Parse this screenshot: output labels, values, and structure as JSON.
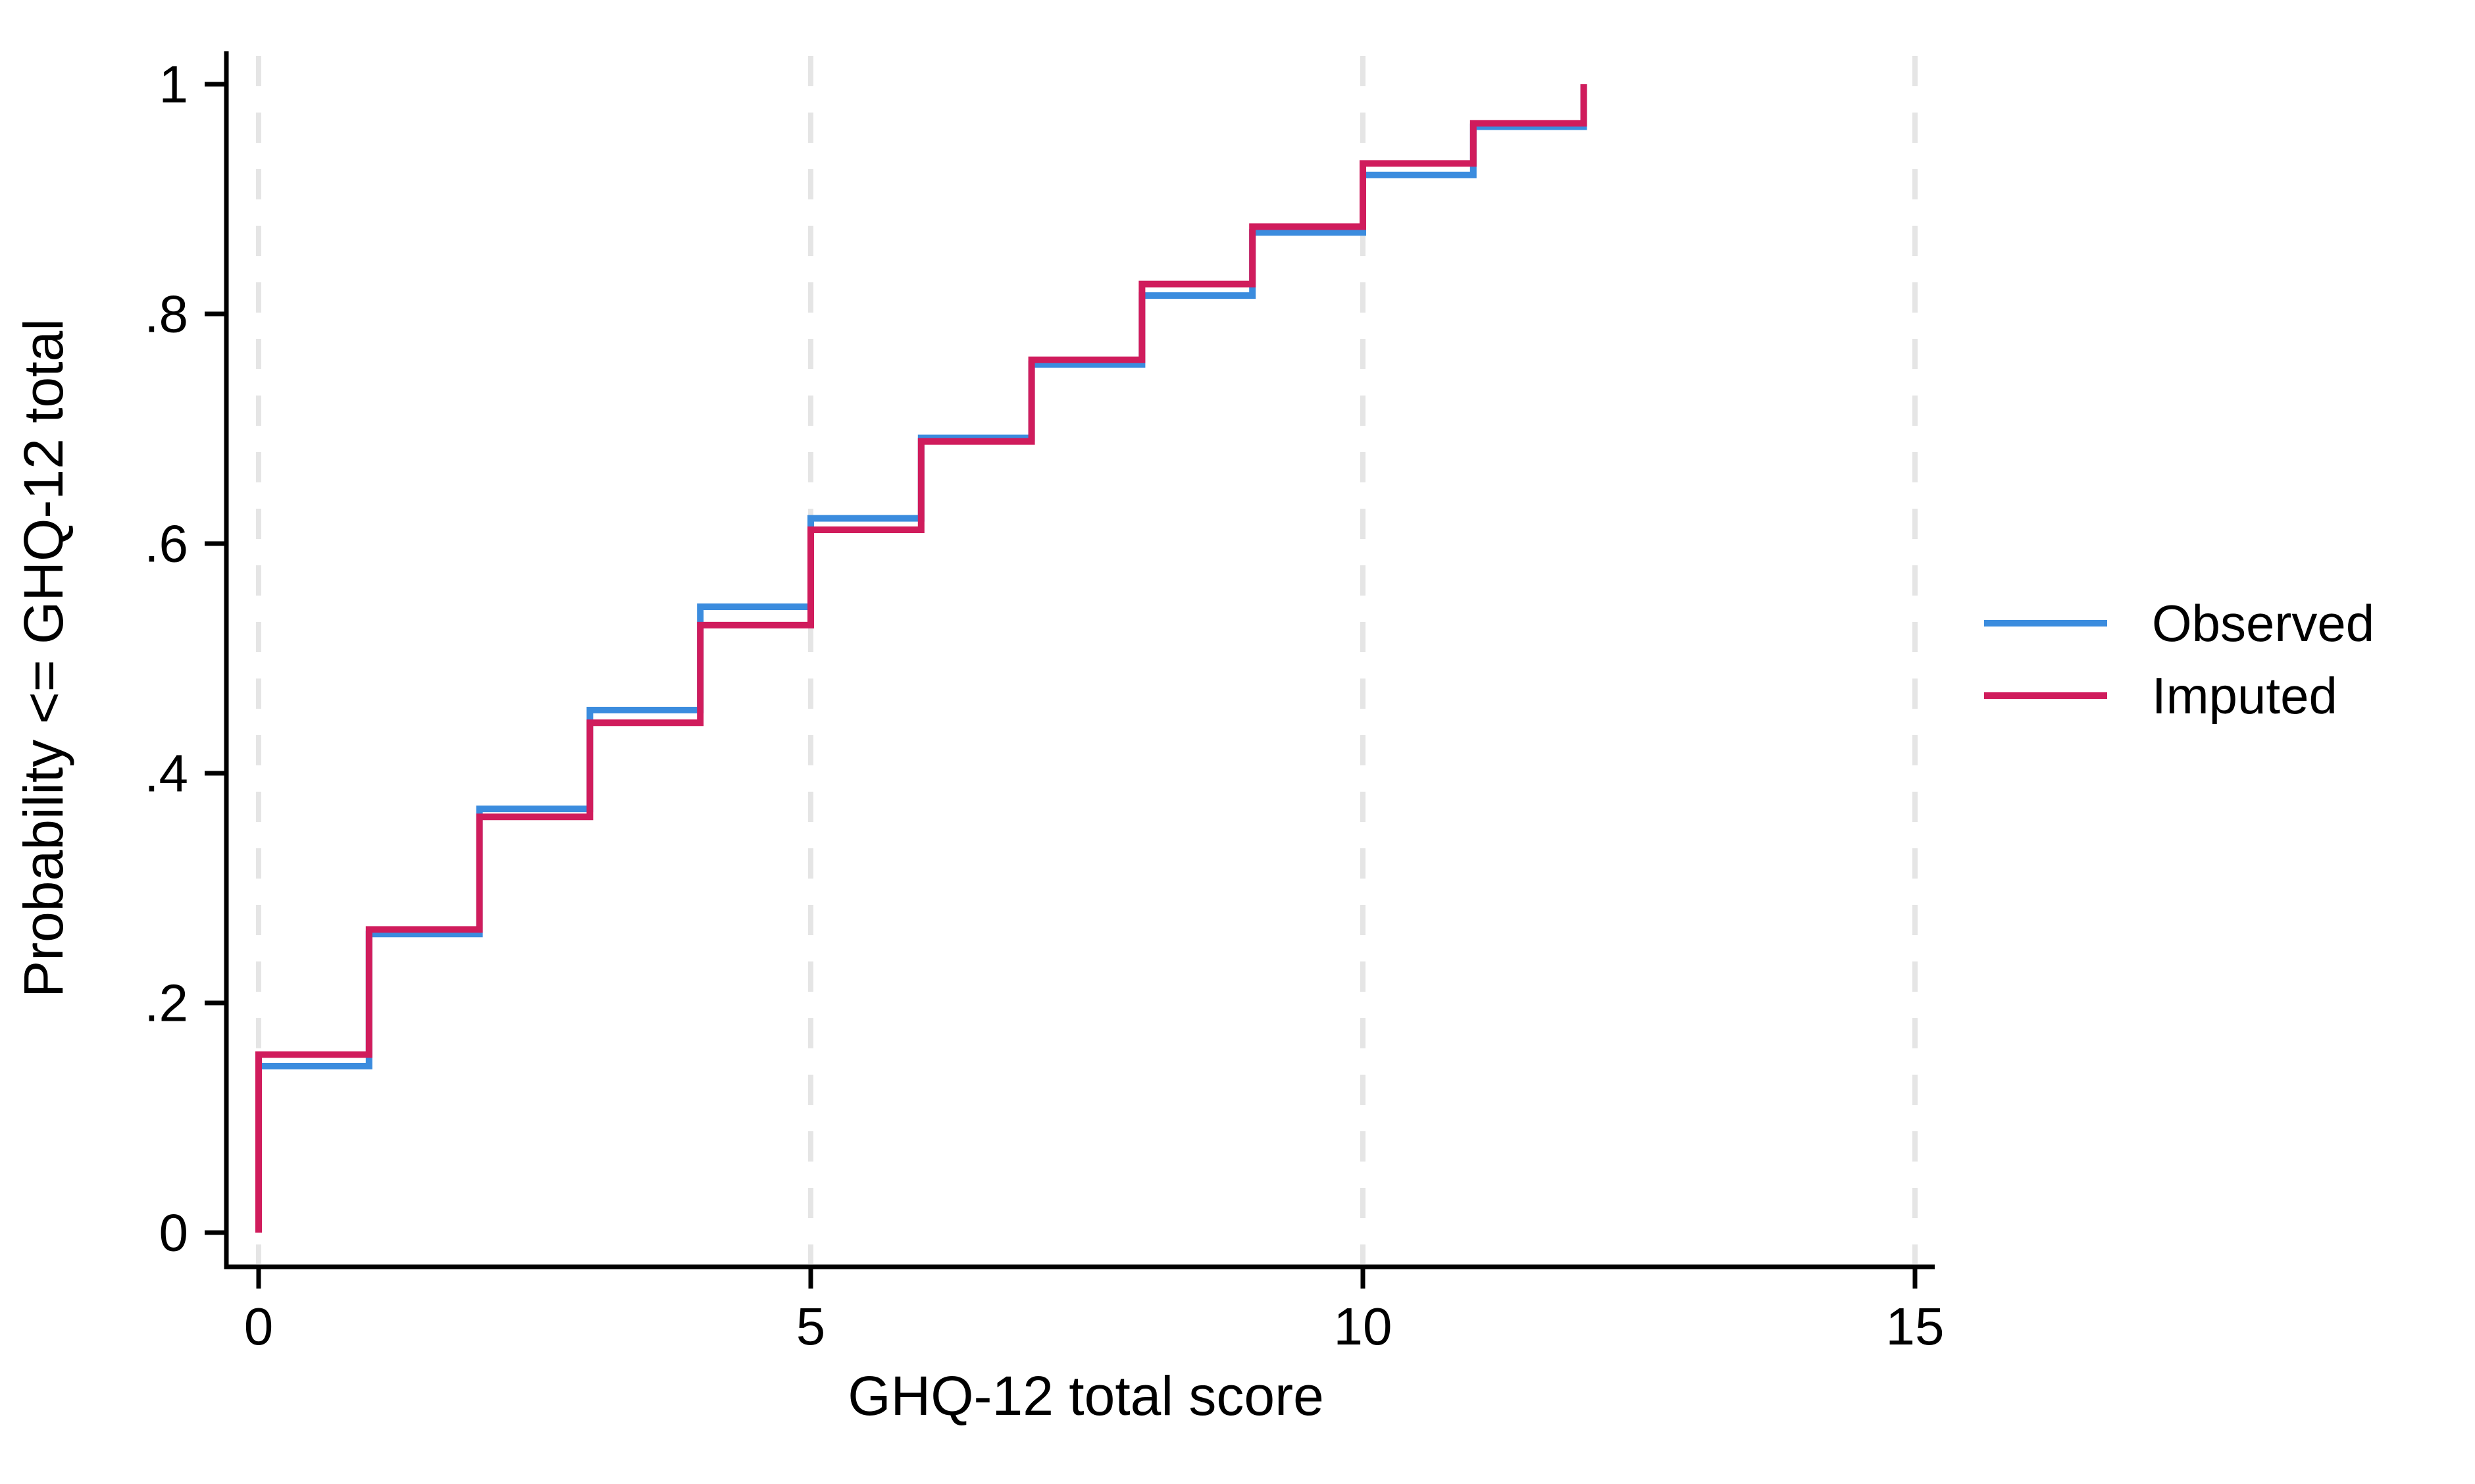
{
  "chart_data": {
    "type": "line",
    "subtype": "step-cdf",
    "title": "",
    "xlabel": "GHQ-12 total score",
    "ylabel": "Probability <= GHQ-12 total",
    "x": [
      0,
      1,
      2,
      3,
      4,
      5,
      6,
      7,
      8,
      9,
      10,
      11,
      12
    ],
    "series": [
      {
        "name": "Observed",
        "color": "#3B8CDE",
        "values": [
          0.145,
          0.26,
          0.369,
          0.455,
          0.545,
          0.622,
          0.692,
          0.756,
          0.816,
          0.871,
          0.921,
          0.963,
          1.0
        ]
      },
      {
        "name": "Imputed",
        "color": "#D01C5C",
        "values": [
          0.155,
          0.264,
          0.362,
          0.444,
          0.529,
          0.612,
          0.689,
          0.76,
          0.826,
          0.876,
          0.931,
          0.966,
          1.0
        ]
      }
    ],
    "xlim": [
      0,
      15
    ],
    "ylim": [
      0,
      1
    ],
    "x_ticks": [
      0,
      5,
      10,
      15
    ],
    "x_tick_labels": [
      "0",
      "5",
      "10",
      "15"
    ],
    "y_ticks": [
      0,
      0.2,
      0.4,
      0.6,
      0.8,
      1
    ],
    "y_tick_labels": [
      "0",
      ".2",
      ".4",
      ".6",
      ".8",
      "1"
    ],
    "grid": "vertical-dashed-at-x-ticks",
    "gridline_color": "#E5E5E5",
    "axis_color": "#000000",
    "background_color": "#FFFFFF",
    "legend_position": "right-middle",
    "line_style": "step-after"
  },
  "legend": {
    "items": [
      {
        "label": "Observed",
        "color": "#3B8CDE"
      },
      {
        "label": "Imputed",
        "color": "#D01C5C"
      }
    ]
  },
  "axes": {
    "x_title": "GHQ-12 total score",
    "y_title": "Probability <= GHQ-12 total"
  }
}
